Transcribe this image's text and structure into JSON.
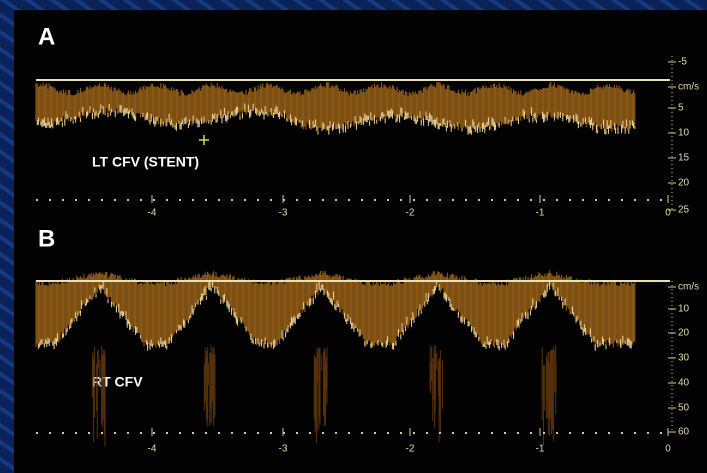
{
  "panels": [
    {
      "label": "A",
      "vessel": "LT CFV (STENT)",
      "velocity_scale": [
        "-5",
        "cm/s",
        "5",
        "10",
        "15",
        "20",
        "25"
      ],
      "time_scale": [
        "-4",
        "-3",
        "-2",
        "-1",
        "0"
      ]
    },
    {
      "label": "B",
      "vessel": "RT CFV",
      "velocity_scale": [
        "cm/s",
        "10",
        "20",
        "30",
        "40",
        "50",
        "60"
      ],
      "time_scale": [
        "-4",
        "-3",
        "-2",
        "-1",
        "0"
      ]
    }
  ]
}
